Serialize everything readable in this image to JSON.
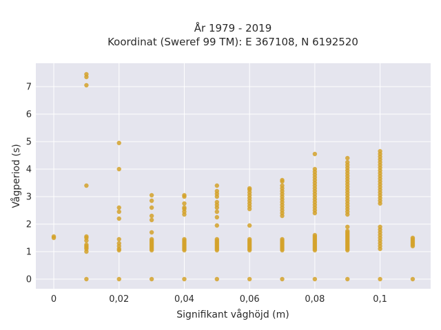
{
  "chart_data": {
    "type": "scatter",
    "title_line1": "År 1979 - 2019",
    "title_line2": "Koordinat (Sweref 99 TM): E 367108, N 6192520",
    "xlabel": "Signifikant våghöjd (m)",
    "ylabel": "Vågperiod (s)",
    "xlim": [
      -0.0055,
      0.1155
    ],
    "ylim": [
      -0.35,
      7.85
    ],
    "x_ticks": [
      0,
      0.02,
      0.04,
      0.06,
      0.08,
      0.1
    ],
    "x_tick_labels": [
      "0",
      "0,02",
      "0,04",
      "0,06",
      "0,08",
      "0,1"
    ],
    "y_ticks": [
      0,
      1,
      2,
      3,
      4,
      5,
      6,
      7
    ],
    "y_tick_labels": [
      "0",
      "1",
      "2",
      "3",
      "4",
      "5",
      "6",
      "7"
    ],
    "grid": true,
    "colors": {
      "background": "#e5e5ee",
      "grid": "#ffffff",
      "marker": "#d4a22a"
    },
    "series": [
      {
        "points": [
          [
            0,
            1.5
          ],
          [
            0,
            1.55
          ],
          [
            0.01,
            0
          ],
          [
            0.01,
            1.0
          ],
          [
            0.01,
            1.1
          ],
          [
            0.01,
            1.15
          ],
          [
            0.01,
            1.2
          ],
          [
            0.01,
            1.25
          ],
          [
            0.01,
            1.4
          ],
          [
            0.01,
            1.5
          ],
          [
            0.01,
            1.55
          ],
          [
            0.01,
            3.4
          ],
          [
            0.01,
            7.05
          ],
          [
            0.01,
            7.35
          ],
          [
            0.01,
            7.45
          ],
          [
            0.02,
            0
          ],
          [
            0.02,
            1.05
          ],
          [
            0.02,
            1.1
          ],
          [
            0.02,
            1.2
          ],
          [
            0.02,
            1.3
          ],
          [
            0.02,
            1.45
          ],
          [
            0.02,
            2.2
          ],
          [
            0.02,
            2.45
          ],
          [
            0.02,
            2.6
          ],
          [
            0.02,
            4.0
          ],
          [
            0.02,
            4.95
          ],
          [
            0.03,
            0
          ],
          [
            0.03,
            1.05
          ],
          [
            0.03,
            1.1
          ],
          [
            0.03,
            1.15
          ],
          [
            0.03,
            1.2
          ],
          [
            0.03,
            1.25
          ],
          [
            0.03,
            1.3
          ],
          [
            0.03,
            1.35
          ],
          [
            0.03,
            1.4
          ],
          [
            0.03,
            1.45
          ],
          [
            0.03,
            1.7
          ],
          [
            0.03,
            2.15
          ],
          [
            0.03,
            2.3
          ],
          [
            0.03,
            2.6
          ],
          [
            0.03,
            2.85
          ],
          [
            0.03,
            3.05
          ],
          [
            0.04,
            0
          ],
          [
            0.04,
            1.05
          ],
          [
            0.04,
            1.1
          ],
          [
            0.04,
            1.15
          ],
          [
            0.04,
            1.2
          ],
          [
            0.04,
            1.25
          ],
          [
            0.04,
            1.3
          ],
          [
            0.04,
            1.35
          ],
          [
            0.04,
            1.4
          ],
          [
            0.04,
            1.45
          ],
          [
            0.04,
            2.35
          ],
          [
            0.04,
            2.45
          ],
          [
            0.04,
            2.55
          ],
          [
            0.04,
            2.6
          ],
          [
            0.04,
            2.75
          ],
          [
            0.04,
            3.0
          ],
          [
            0.04,
            3.05
          ],
          [
            0.05,
            0
          ],
          [
            0.05,
            1.05
          ],
          [
            0.05,
            1.1
          ],
          [
            0.05,
            1.15
          ],
          [
            0.05,
            1.2
          ],
          [
            0.05,
            1.25
          ],
          [
            0.05,
            1.3
          ],
          [
            0.05,
            1.35
          ],
          [
            0.05,
            1.4
          ],
          [
            0.05,
            1.45
          ],
          [
            0.05,
            1.95
          ],
          [
            0.05,
            2.25
          ],
          [
            0.05,
            2.45
          ],
          [
            0.05,
            2.6
          ],
          [
            0.05,
            2.7
          ],
          [
            0.05,
            2.8
          ],
          [
            0.05,
            3.0
          ],
          [
            0.05,
            3.1
          ],
          [
            0.05,
            3.2
          ],
          [
            0.05,
            3.4
          ],
          [
            0.06,
            0
          ],
          [
            0.06,
            1.05
          ],
          [
            0.06,
            1.1
          ],
          [
            0.06,
            1.15
          ],
          [
            0.06,
            1.2
          ],
          [
            0.06,
            1.25
          ],
          [
            0.06,
            1.3
          ],
          [
            0.06,
            1.35
          ],
          [
            0.06,
            1.4
          ],
          [
            0.06,
            1.45
          ],
          [
            0.06,
            1.95
          ],
          [
            0.06,
            2.55
          ],
          [
            0.06,
            2.65
          ],
          [
            0.06,
            2.75
          ],
          [
            0.06,
            2.85
          ],
          [
            0.06,
            2.95
          ],
          [
            0.06,
            3.05
          ],
          [
            0.06,
            3.15
          ],
          [
            0.06,
            3.25
          ],
          [
            0.06,
            3.3
          ],
          [
            0.07,
            0
          ],
          [
            0.07,
            1.05
          ],
          [
            0.07,
            1.1
          ],
          [
            0.07,
            1.15
          ],
          [
            0.07,
            1.2
          ],
          [
            0.07,
            1.25
          ],
          [
            0.07,
            1.3
          ],
          [
            0.07,
            1.35
          ],
          [
            0.07,
            1.4
          ],
          [
            0.07,
            1.45
          ],
          [
            0.07,
            2.3
          ],
          [
            0.07,
            2.4
          ],
          [
            0.07,
            2.5
          ],
          [
            0.07,
            2.6
          ],
          [
            0.07,
            2.7
          ],
          [
            0.07,
            2.8
          ],
          [
            0.07,
            2.9
          ],
          [
            0.07,
            3.0
          ],
          [
            0.07,
            3.1
          ],
          [
            0.07,
            3.2
          ],
          [
            0.07,
            3.3
          ],
          [
            0.07,
            3.4
          ],
          [
            0.07,
            3.55
          ],
          [
            0.07,
            3.6
          ],
          [
            0.08,
            0
          ],
          [
            0.08,
            1.05
          ],
          [
            0.08,
            1.1
          ],
          [
            0.08,
            1.15
          ],
          [
            0.08,
            1.2
          ],
          [
            0.08,
            1.25
          ],
          [
            0.08,
            1.3
          ],
          [
            0.08,
            1.35
          ],
          [
            0.08,
            1.4
          ],
          [
            0.08,
            1.45
          ],
          [
            0.08,
            1.5
          ],
          [
            0.08,
            1.55
          ],
          [
            0.08,
            1.6
          ],
          [
            0.08,
            2.4
          ],
          [
            0.08,
            2.5
          ],
          [
            0.08,
            2.6
          ],
          [
            0.08,
            2.7
          ],
          [
            0.08,
            2.8
          ],
          [
            0.08,
            2.9
          ],
          [
            0.08,
            3.0
          ],
          [
            0.08,
            3.1
          ],
          [
            0.08,
            3.2
          ],
          [
            0.08,
            3.3
          ],
          [
            0.08,
            3.4
          ],
          [
            0.08,
            3.5
          ],
          [
            0.08,
            3.6
          ],
          [
            0.08,
            3.7
          ],
          [
            0.08,
            3.8
          ],
          [
            0.08,
            3.9
          ],
          [
            0.08,
            4.0
          ],
          [
            0.08,
            4.55
          ],
          [
            0.09,
            0
          ],
          [
            0.09,
            1.05
          ],
          [
            0.09,
            1.1
          ],
          [
            0.09,
            1.15
          ],
          [
            0.09,
            1.2
          ],
          [
            0.09,
            1.25
          ],
          [
            0.09,
            1.3
          ],
          [
            0.09,
            1.35
          ],
          [
            0.09,
            1.4
          ],
          [
            0.09,
            1.45
          ],
          [
            0.09,
            1.5
          ],
          [
            0.09,
            1.55
          ],
          [
            0.09,
            1.6
          ],
          [
            0.09,
            1.65
          ],
          [
            0.09,
            1.7
          ],
          [
            0.09,
            1.75
          ],
          [
            0.09,
            1.9
          ],
          [
            0.09,
            2.35
          ],
          [
            0.09,
            2.45
          ],
          [
            0.09,
            2.55
          ],
          [
            0.09,
            2.65
          ],
          [
            0.09,
            2.75
          ],
          [
            0.09,
            2.85
          ],
          [
            0.09,
            2.95
          ],
          [
            0.09,
            3.05
          ],
          [
            0.09,
            3.15
          ],
          [
            0.09,
            3.25
          ],
          [
            0.09,
            3.35
          ],
          [
            0.09,
            3.45
          ],
          [
            0.09,
            3.55
          ],
          [
            0.09,
            3.65
          ],
          [
            0.09,
            3.75
          ],
          [
            0.09,
            3.85
          ],
          [
            0.09,
            3.95
          ],
          [
            0.09,
            4.05
          ],
          [
            0.09,
            4.15
          ],
          [
            0.09,
            4.25
          ],
          [
            0.09,
            4.4
          ],
          [
            0.1,
            0
          ],
          [
            0.1,
            1.1
          ],
          [
            0.1,
            1.2
          ],
          [
            0.1,
            1.3
          ],
          [
            0.1,
            1.4
          ],
          [
            0.1,
            1.5
          ],
          [
            0.1,
            1.6
          ],
          [
            0.1,
            1.7
          ],
          [
            0.1,
            1.8
          ],
          [
            0.1,
            1.9
          ],
          [
            0.1,
            2.75
          ],
          [
            0.1,
            2.85
          ],
          [
            0.1,
            2.95
          ],
          [
            0.1,
            3.05
          ],
          [
            0.1,
            3.15
          ],
          [
            0.1,
            3.25
          ],
          [
            0.1,
            3.35
          ],
          [
            0.1,
            3.45
          ],
          [
            0.1,
            3.55
          ],
          [
            0.1,
            3.65
          ],
          [
            0.1,
            3.75
          ],
          [
            0.1,
            3.85
          ],
          [
            0.1,
            3.95
          ],
          [
            0.1,
            4.05
          ],
          [
            0.1,
            4.15
          ],
          [
            0.1,
            4.25
          ],
          [
            0.1,
            4.35
          ],
          [
            0.1,
            4.45
          ],
          [
            0.1,
            4.55
          ],
          [
            0.1,
            4.65
          ],
          [
            0.11,
            0
          ],
          [
            0.11,
            1.2
          ],
          [
            0.11,
            1.25
          ],
          [
            0.11,
            1.3
          ],
          [
            0.11,
            1.35
          ],
          [
            0.11,
            1.4
          ],
          [
            0.11,
            1.45
          ],
          [
            0.11,
            1.5
          ]
        ]
      }
    ]
  }
}
